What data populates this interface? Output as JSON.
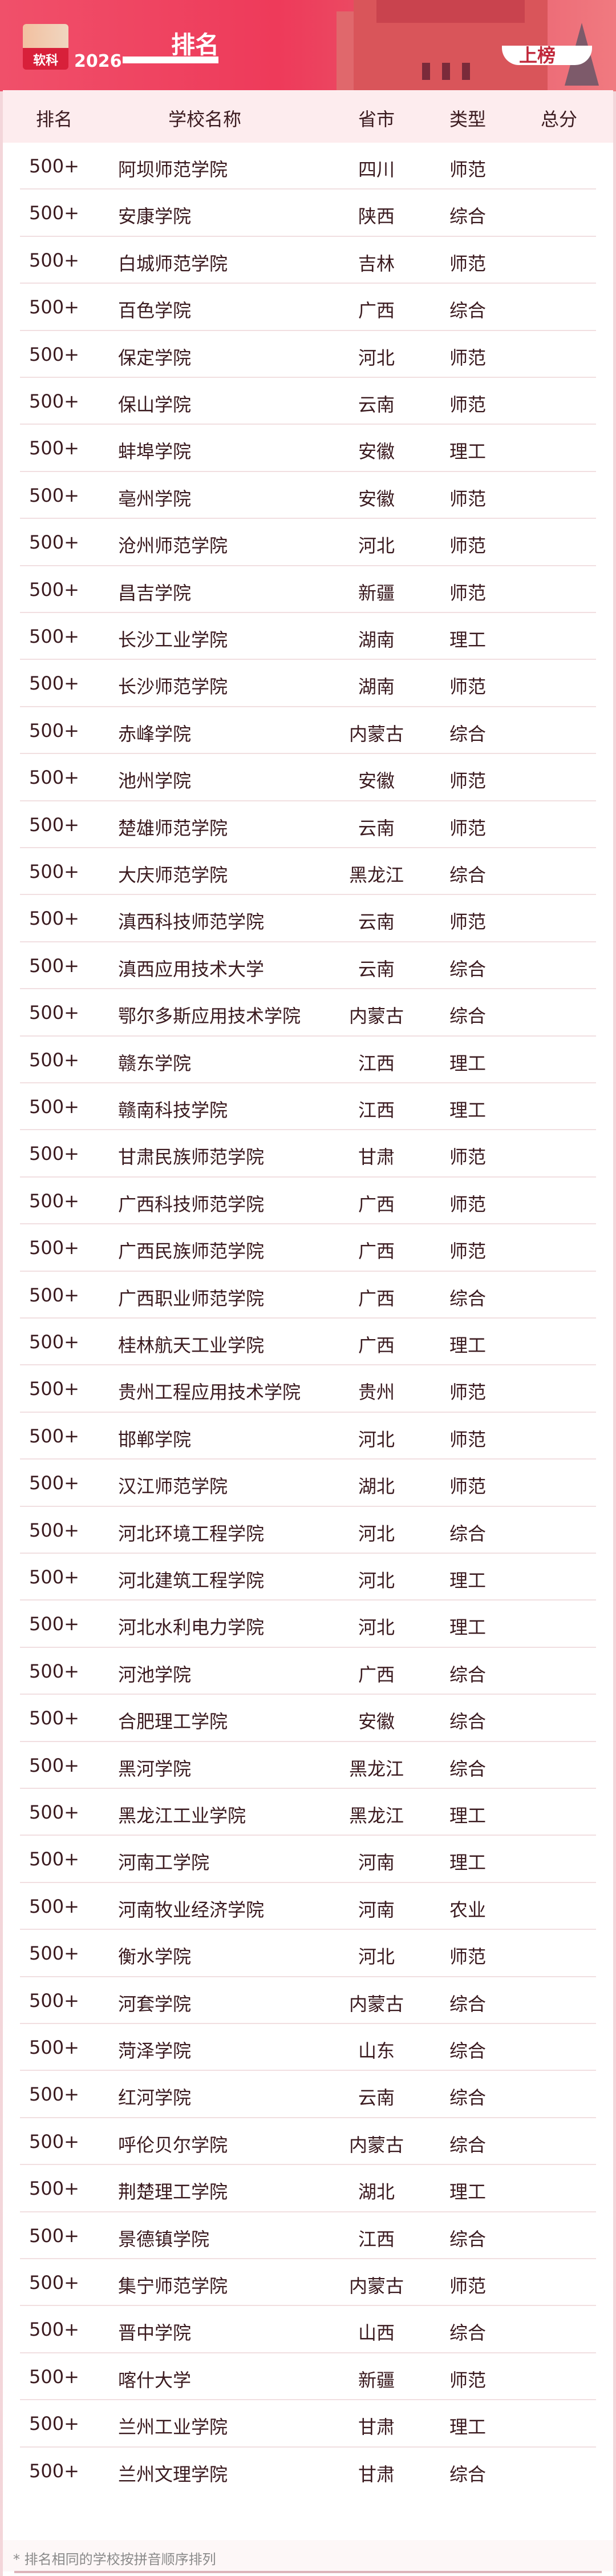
{
  "header": {
    "logo_text": "软科",
    "year": "2026",
    "title": "排名",
    "badge_text": "上榜"
  },
  "colors": {
    "accent": "#ee3a5a",
    "header_row_bg": "#fdecee",
    "text": "#3a1a1f"
  },
  "table": {
    "columns": [
      "排名",
      "学校名称",
      "省市",
      "类型",
      "总分"
    ],
    "rows": [
      [
        "500+",
        "阿坝师范学院",
        "四川",
        "师范",
        ""
      ],
      [
        "500+",
        "安康学院",
        "陕西",
        "综合",
        ""
      ],
      [
        "500+",
        "白城师范学院",
        "吉林",
        "师范",
        ""
      ],
      [
        "500+",
        "百色学院",
        "广西",
        "综合",
        ""
      ],
      [
        "500+",
        "保定学院",
        "河北",
        "师范",
        ""
      ],
      [
        "500+",
        "保山学院",
        "云南",
        "师范",
        ""
      ],
      [
        "500+",
        "蚌埠学院",
        "安徽",
        "理工",
        ""
      ],
      [
        "500+",
        "亳州学院",
        "安徽",
        "师范",
        ""
      ],
      [
        "500+",
        "沧州师范学院",
        "河北",
        "师范",
        ""
      ],
      [
        "500+",
        "昌吉学院",
        "新疆",
        "师范",
        ""
      ],
      [
        "500+",
        "长沙工业学院",
        "湖南",
        "理工",
        ""
      ],
      [
        "500+",
        "长沙师范学院",
        "湖南",
        "师范",
        ""
      ],
      [
        "500+",
        "赤峰学院",
        "内蒙古",
        "综合",
        ""
      ],
      [
        "500+",
        "池州学院",
        "安徽",
        "师范",
        ""
      ],
      [
        "500+",
        "楚雄师范学院",
        "云南",
        "师范",
        ""
      ],
      [
        "500+",
        "大庆师范学院",
        "黑龙江",
        "综合",
        ""
      ],
      [
        "500+",
        "滇西科技师范学院",
        "云南",
        "师范",
        ""
      ],
      [
        "500+",
        "滇西应用技术大学",
        "云南",
        "综合",
        ""
      ],
      [
        "500+",
        "鄂尔多斯应用技术学院",
        "内蒙古",
        "综合",
        ""
      ],
      [
        "500+",
        "赣东学院",
        "江西",
        "理工",
        ""
      ],
      [
        "500+",
        "赣南科技学院",
        "江西",
        "理工",
        ""
      ],
      [
        "500+",
        "甘肃民族师范学院",
        "甘肃",
        "师范",
        ""
      ],
      [
        "500+",
        "广西科技师范学院",
        "广西",
        "师范",
        ""
      ],
      [
        "500+",
        "广西民族师范学院",
        "广西",
        "师范",
        ""
      ],
      [
        "500+",
        "广西职业师范学院",
        "广西",
        "综合",
        ""
      ],
      [
        "500+",
        "桂林航天工业学院",
        "广西",
        "理工",
        ""
      ],
      [
        "500+",
        "贵州工程应用技术学院",
        "贵州",
        "师范",
        ""
      ],
      [
        "500+",
        "邯郸学院",
        "河北",
        "师范",
        ""
      ],
      [
        "500+",
        "汉江师范学院",
        "湖北",
        "师范",
        ""
      ],
      [
        "500+",
        "河北环境工程学院",
        "河北",
        "综合",
        ""
      ],
      [
        "500+",
        "河北建筑工程学院",
        "河北",
        "理工",
        ""
      ],
      [
        "500+",
        "河北水利电力学院",
        "河北",
        "理工",
        ""
      ],
      [
        "500+",
        "河池学院",
        "广西",
        "综合",
        ""
      ],
      [
        "500+",
        "合肥理工学院",
        "安徽",
        "综合",
        ""
      ],
      [
        "500+",
        "黑河学院",
        "黑龙江",
        "综合",
        ""
      ],
      [
        "500+",
        "黑龙江工业学院",
        "黑龙江",
        "理工",
        ""
      ],
      [
        "500+",
        "河南工学院",
        "河南",
        "理工",
        ""
      ],
      [
        "500+",
        "河南牧业经济学院",
        "河南",
        "农业",
        ""
      ],
      [
        "500+",
        "衡水学院",
        "河北",
        "师范",
        ""
      ],
      [
        "500+",
        "河套学院",
        "内蒙古",
        "综合",
        ""
      ],
      [
        "500+",
        "菏泽学院",
        "山东",
        "综合",
        ""
      ],
      [
        "500+",
        "红河学院",
        "云南",
        "综合",
        ""
      ],
      [
        "500+",
        "呼伦贝尔学院",
        "内蒙古",
        "综合",
        ""
      ],
      [
        "500+",
        "荆楚理工学院",
        "湖北",
        "理工",
        ""
      ],
      [
        "500+",
        "景德镇学院",
        "江西",
        "综合",
        ""
      ],
      [
        "500+",
        "集宁师范学院",
        "内蒙古",
        "师范",
        ""
      ],
      [
        "500+",
        "晋中学院",
        "山西",
        "综合",
        ""
      ],
      [
        "500+",
        "喀什大学",
        "新疆",
        "师范",
        ""
      ],
      [
        "500+",
        "兰州工业学院",
        "甘肃",
        "理工",
        ""
      ],
      [
        "500+",
        "兰州文理学院",
        "甘肃",
        "综合",
        ""
      ]
    ]
  },
  "footnote": "* 排名相同的学校按拼音顺序排列"
}
